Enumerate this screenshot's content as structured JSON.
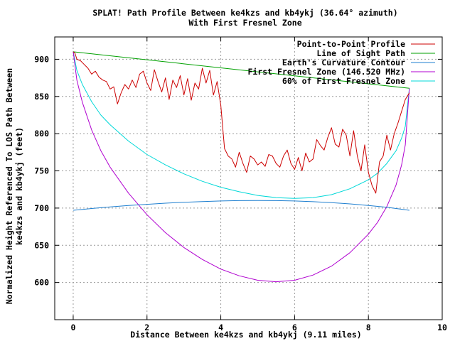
{
  "chart_data": {
    "type": "line",
    "title": "SPLAT! Path Profile Between ke4kzs and kb4ykj (36.64° azimuth)",
    "subtitle": "With First Fresnel Zone",
    "xlabel": "Distance Between ke4kzs and kb4ykj (9.11 miles)",
    "ylabel": "Normalized Height Referenced To LOS Path Between ke4kzs and kb4ykj (feet)",
    "ylabel_lines": [
      "Normalized Height Referenced To LOS Path Between",
      "ke4kzs and kb4ykj (feet)"
    ],
    "xlim": [
      -0.5,
      10
    ],
    "ylim": [
      550,
      930
    ],
    "x_ticks": [
      0,
      2,
      4,
      6,
      8,
      10
    ],
    "y_ticks": [
      600,
      650,
      700,
      750,
      800,
      850,
      900
    ],
    "x_tick_labels": [
      "0",
      "2",
      "4",
      "6",
      "8",
      "10"
    ],
    "y_tick_labels": [
      "600",
      "650",
      "700",
      "750",
      "800",
      "850",
      "900"
    ],
    "grid": true,
    "legend_position": "top-right",
    "series": [
      {
        "name": "Point-to-Point Profile",
        "color": "#cc0000",
        "x": [
          0,
          0.05,
          0.1,
          0.2,
          0.3,
          0.4,
          0.5,
          0.6,
          0.7,
          0.8,
          0.9,
          1.0,
          1.1,
          1.2,
          1.3,
          1.4,
          1.5,
          1.6,
          1.7,
          1.8,
          1.9,
          2.0,
          2.1,
          2.2,
          2.3,
          2.4,
          2.5,
          2.6,
          2.7,
          2.8,
          2.9,
          3.0,
          3.1,
          3.2,
          3.3,
          3.4,
          3.5,
          3.6,
          3.7,
          3.8,
          3.9,
          4.0,
          4.1,
          4.2,
          4.3,
          4.4,
          4.5,
          4.6,
          4.7,
          4.8,
          4.9,
          5.0,
          5.1,
          5.2,
          5.3,
          5.4,
          5.5,
          5.6,
          5.7,
          5.8,
          5.9,
          6.0,
          6.1,
          6.2,
          6.3,
          6.4,
          6.5,
          6.6,
          6.7,
          6.8,
          6.9,
          7.0,
          7.1,
          7.2,
          7.3,
          7.4,
          7.5,
          7.6,
          7.7,
          7.8,
          7.9,
          8.0,
          8.1,
          8.2,
          8.3,
          8.4,
          8.5,
          8.6,
          8.7,
          8.8,
          8.9,
          9.0,
          9.05,
          9.11
        ],
        "y": [
          910,
          908,
          900,
          898,
          893,
          888,
          880,
          884,
          876,
          872,
          870,
          860,
          863,
          840,
          855,
          866,
          860,
          872,
          862,
          880,
          884,
          868,
          858,
          886,
          870,
          856,
          875,
          846,
          872,
          862,
          878,
          852,
          874,
          845,
          868,
          860,
          888,
          868,
          885,
          852,
          870,
          838,
          780,
          770,
          766,
          755,
          775,
          760,
          748,
          770,
          766,
          758,
          762,
          756,
          772,
          770,
          760,
          755,
          770,
          778,
          760,
          752,
          768,
          750,
          774,
          762,
          766,
          792,
          784,
          778,
          795,
          808,
          786,
          782,
          806,
          798,
          770,
          804,
          770,
          750,
          785,
          748,
          730,
          720,
          762,
          770,
          798,
          778,
          800,
          814,
          830,
          846,
          850,
          855
        ],
        "y_note": ""
      },
      {
        "name": "Line of Sight Path",
        "color": "#00a000",
        "x": [
          0,
          9.11
        ],
        "y": [
          910,
          861
        ]
      },
      {
        "name": "Earth's Curvature Contour",
        "color": "#1e7fd0",
        "x": [
          0,
          0.5,
          1,
          1.5,
          2,
          2.5,
          3,
          3.5,
          4,
          4.5,
          5,
          5.5,
          6,
          6.5,
          7,
          7.5,
          8,
          8.5,
          9.11
        ],
        "y": [
          697,
          699.4,
          701.5,
          703.4,
          705.1,
          706.6,
          707.8,
          708.8,
          709.5,
          710,
          710.2,
          710,
          709.5,
          708.6,
          707.3,
          705.6,
          703.5,
          701.1,
          697
        ]
      },
      {
        "name": "First Fresnel Zone (146.520 MHz)",
        "color": "#b000d0",
        "x": [
          0,
          0.1,
          0.25,
          0.5,
          0.75,
          1,
          1.5,
          2,
          2.5,
          3,
          3.5,
          4,
          4.5,
          5,
          5.5,
          6,
          6.5,
          7,
          7.5,
          8,
          8.25,
          8.5,
          8.75,
          8.9,
          9.0,
          9.11
        ],
        "y": [
          910,
          872,
          842,
          805,
          777,
          755,
          720,
          691,
          667,
          647,
          631,
          618,
          609,
          603,
          601,
          603,
          610,
          622,
          640,
          665,
          681,
          702,
          731,
          758,
          785,
          861
        ]
      },
      {
        "name": "60% of First Fresnel Zone",
        "color": "#00d8d8",
        "x": [
          0,
          0.1,
          0.25,
          0.5,
          0.75,
          1,
          1.5,
          2,
          2.5,
          3,
          3.5,
          4,
          4.5,
          5,
          5.5,
          6,
          6.5,
          7,
          7.5,
          8,
          8.25,
          8.5,
          8.75,
          8.9,
          9.0,
          9.11
        ],
        "y": [
          910,
          885,
          866,
          843,
          825,
          812,
          790,
          772,
          758,
          746,
          736,
          728,
          722,
          717,
          714,
          713,
          714,
          718,
          726,
          738,
          747,
          760,
          777,
          794,
          810,
          861
        ]
      }
    ]
  }
}
